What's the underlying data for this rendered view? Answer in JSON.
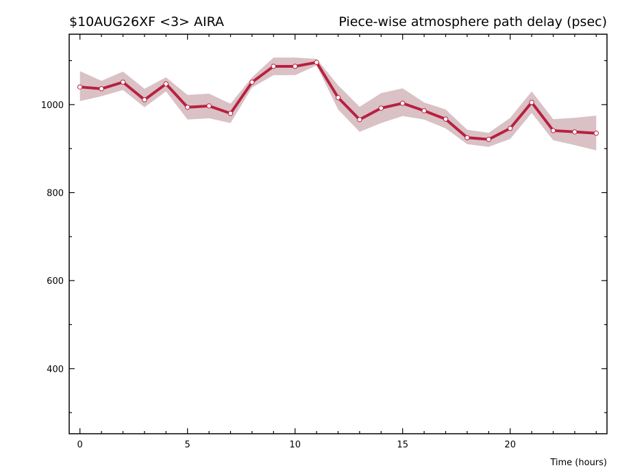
{
  "chart_data": {
    "type": "line",
    "title": "$10AUG26XF <3>  AIRA",
    "subtitle": "Piece-wise atmosphere path delay (psec)",
    "x_label": "Time (hours)",
    "x": [
      0,
      1,
      2,
      3,
      4,
      5,
      6,
      7,
      8,
      9,
      10,
      11,
      12,
      13,
      14,
      15,
      16,
      17,
      18,
      19,
      20,
      21,
      22,
      23,
      24
    ],
    "series": [
      {
        "color": "#b8203f",
        "band_color": "#d9c1c5",
        "values": [
          1040,
          1036,
          1051,
          1011,
          1047,
          994,
          997,
          980,
          1051,
          1087,
          1087,
          1096,
          1016,
          966,
          992,
          1003,
          986,
          967,
          925,
          921,
          946,
          1005,
          941,
          938,
          935
        ],
        "upper": [
          1076,
          1054,
          1075,
          1036,
          1062,
          1022,
          1025,
          1002,
          1062,
          1107,
          1107,
          1104,
          1044,
          995,
          1026,
          1037,
          1005,
          989,
          943,
          936,
          970,
          1030,
          967,
          970,
          975
        ],
        "lower": [
          1008,
          1019,
          1033,
          994,
          1030,
          966,
          969,
          958,
          1039,
          1067,
          1067,
          1089,
          989,
          938,
          958,
          974,
          966,
          946,
          910,
          904,
          922,
          981,
          919,
          908,
          896
        ]
      }
    ],
    "xlim": [
      -0.5,
      24.5
    ],
    "xticks": [
      0,
      5,
      10,
      15,
      20
    ],
    "xminorticks": [
      1,
      2,
      3,
      4,
      6,
      7,
      8,
      9,
      11,
      12,
      13,
      14,
      16,
      17,
      18,
      19,
      21,
      22,
      23,
      24
    ],
    "ylim": [
      252,
      1160
    ],
    "yticks": [
      400,
      600,
      800,
      1000
    ],
    "yminorticks": [
      300,
      500,
      700,
      900,
      1100
    ]
  }
}
